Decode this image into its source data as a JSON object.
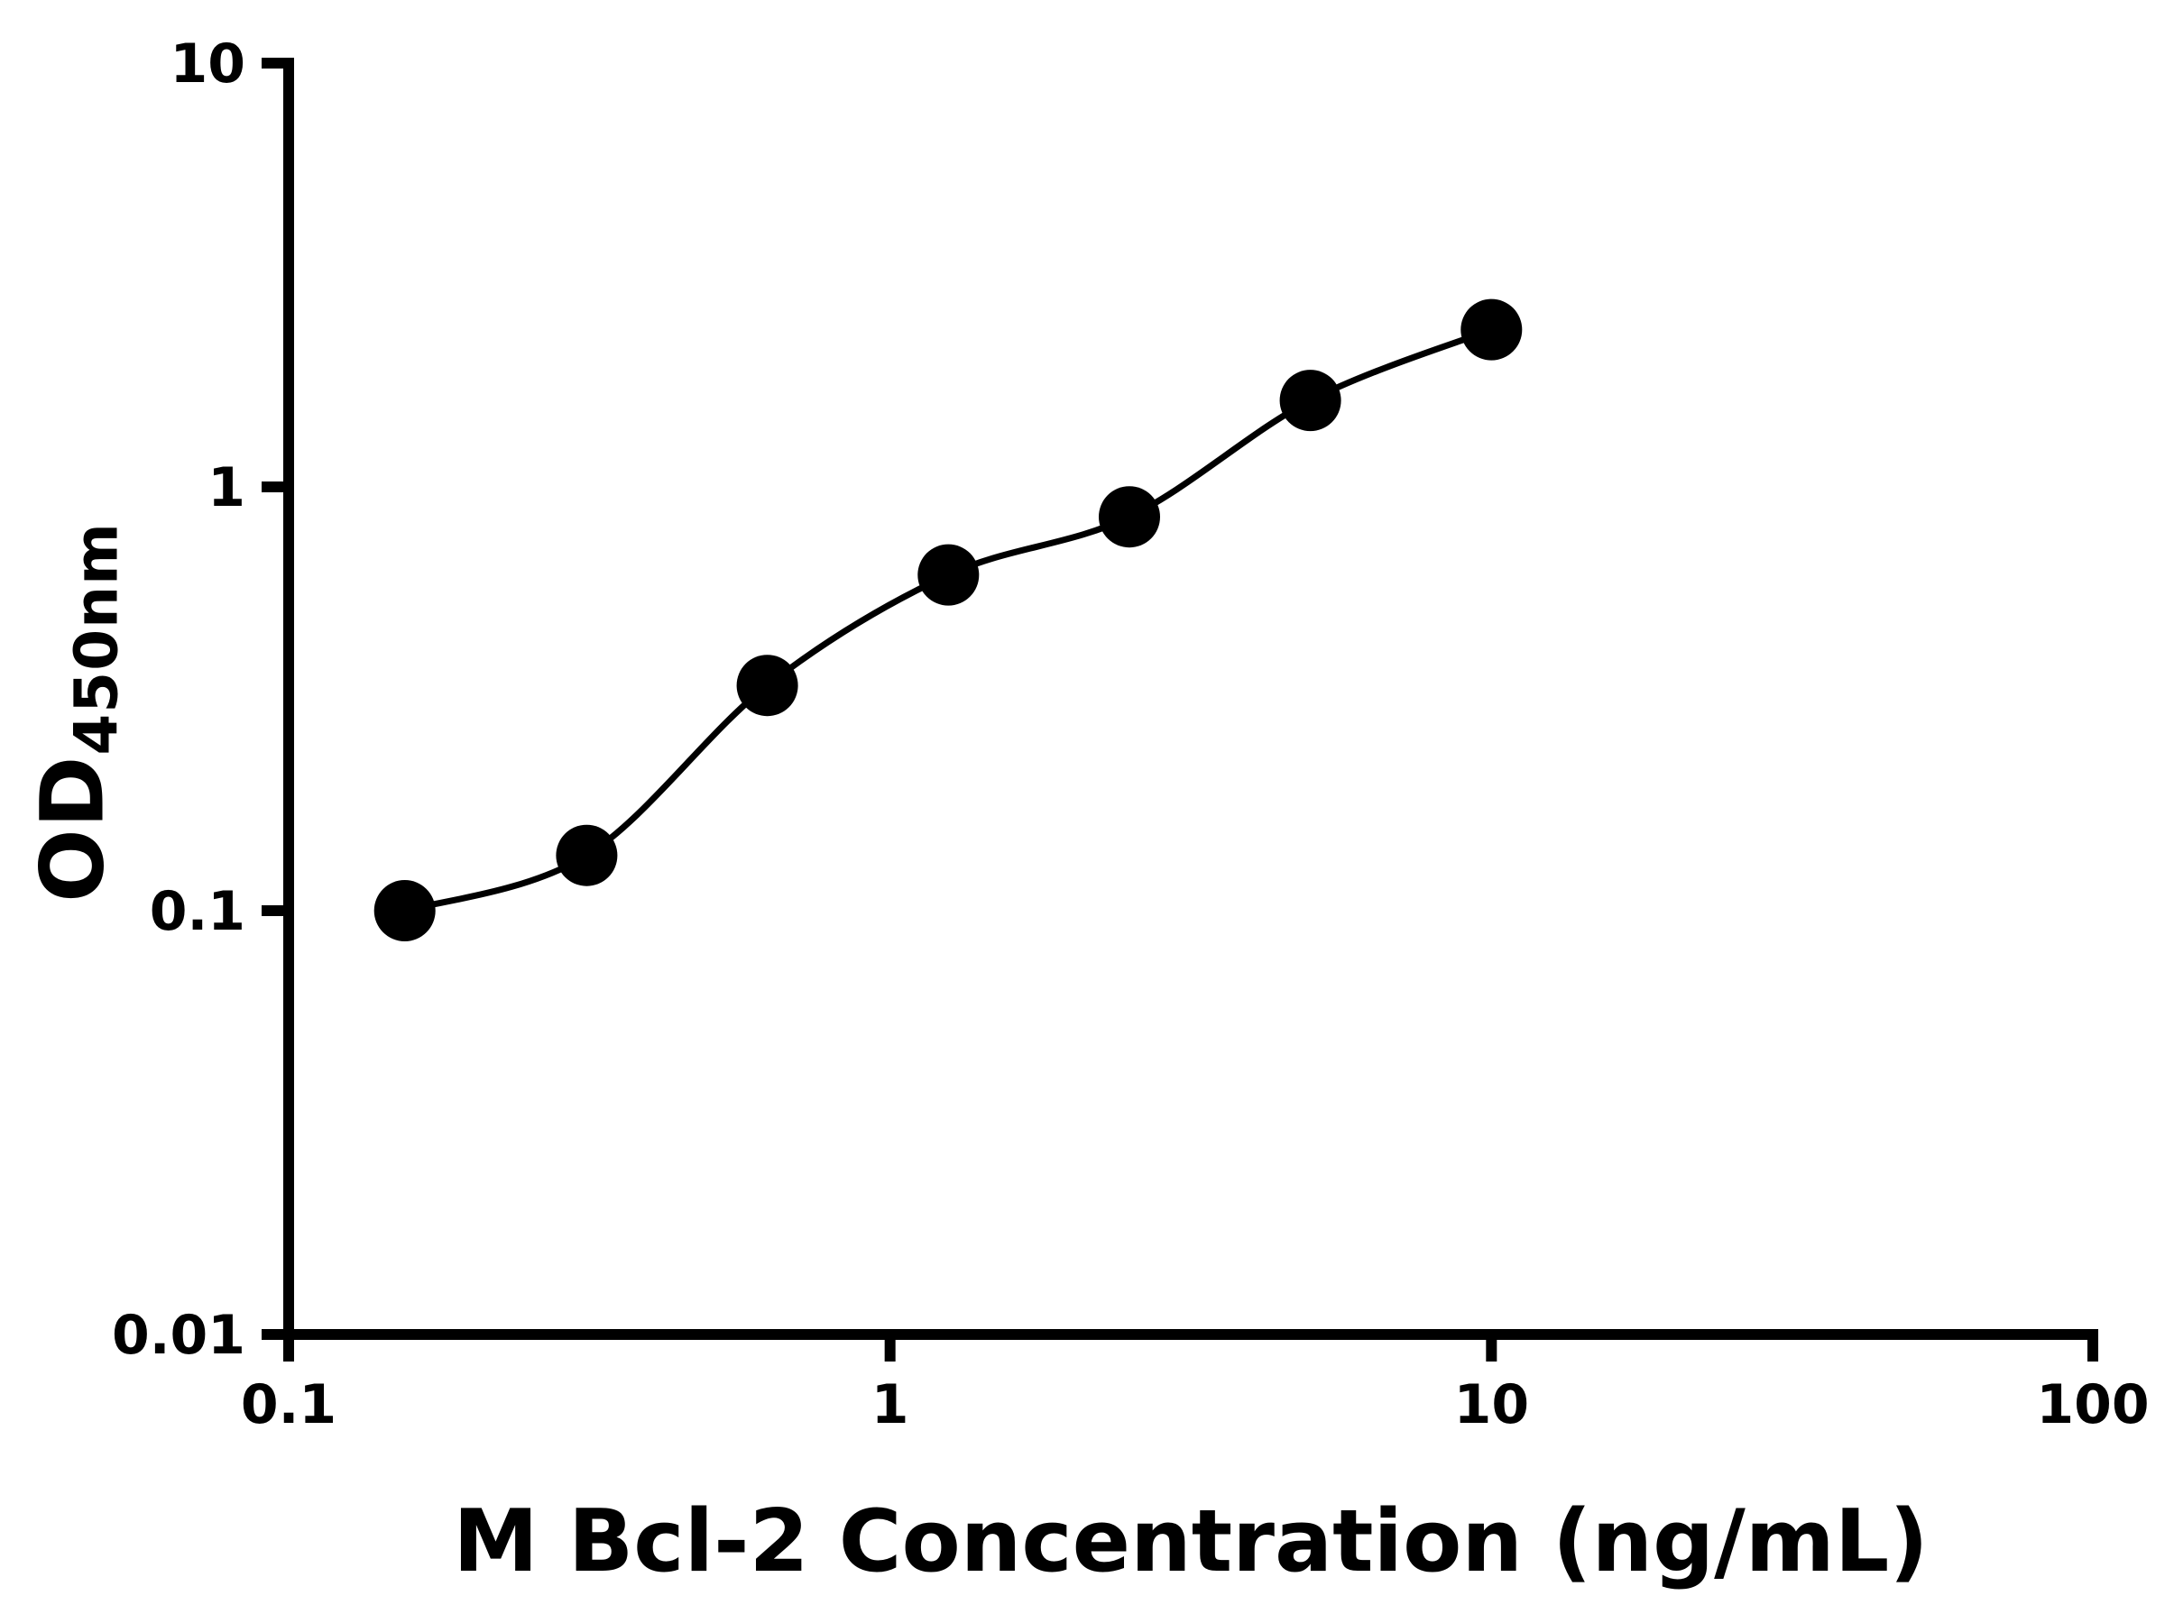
{
  "chart_data": {
    "type": "scatter",
    "title": "",
    "xlabel": "M Bcl-2 Concentration (ng/mL)",
    "ylabel": "OD",
    "ylabel_subscript": "450nm",
    "x_scale": "log",
    "y_scale": "log",
    "xlim": [
      0.1,
      100
    ],
    "ylim": [
      0.01,
      10
    ],
    "x_ticks": [
      {
        "value": 0.1,
        "label": "0.1"
      },
      {
        "value": 1,
        "label": "1"
      },
      {
        "value": 10,
        "label": "10"
      },
      {
        "value": 100,
        "label": "100"
      }
    ],
    "y_ticks": [
      {
        "value": 0.01,
        "label": "0.01"
      },
      {
        "value": 0.1,
        "label": "0.1"
      },
      {
        "value": 1,
        "label": "1"
      },
      {
        "value": 10,
        "label": "10"
      }
    ],
    "points": [
      {
        "x": 0.156,
        "y": 0.1
      },
      {
        "x": 0.313,
        "y": 0.135
      },
      {
        "x": 0.625,
        "y": 0.34
      },
      {
        "x": 1.25,
        "y": 0.62
      },
      {
        "x": 2.5,
        "y": 0.85
      },
      {
        "x": 5,
        "y": 1.6
      },
      {
        "x": 10,
        "y": 2.35
      }
    ],
    "curve_color": "#000000",
    "marker_color": "#000000",
    "axis_color": "#000000",
    "grid": "off",
    "legend": "none"
  }
}
